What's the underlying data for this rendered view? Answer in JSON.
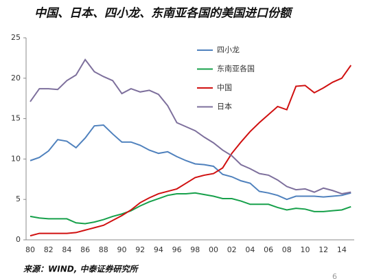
{
  "chart_data": {
    "type": "line",
    "title": "中国、日本、四小龙、东南亚各国的美国进口份额",
    "source": "来源：WIND, 中泰证券研究所",
    "page_number": "6",
    "categories": [
      "80",
      null,
      "82",
      null,
      "84",
      null,
      "86",
      null,
      "88",
      null,
      "90",
      null,
      "92",
      null,
      "94",
      null,
      "96",
      null,
      "98",
      null,
      "00",
      null,
      "02",
      null,
      "04",
      null,
      "06",
      null,
      "08",
      null,
      "10",
      null,
      "12",
      null,
      "14",
      null
    ],
    "series": [
      {
        "name": "四小龙",
        "color": "#4f81bd",
        "values": [
          9.8,
          10.2,
          11,
          12.4,
          12.2,
          11.4,
          12.6,
          14.1,
          14.2,
          13.1,
          12.1,
          12.1,
          11.7,
          11.1,
          10.7,
          10.9,
          10.3,
          9.8,
          9.4,
          9.3,
          9.1,
          8.1,
          7.8,
          7.3,
          7.0,
          6.0,
          5.8,
          5.5,
          5.0,
          5.4,
          5.4,
          5.4,
          5.3,
          5.4,
          5.5,
          5.8
        ]
      },
      {
        "name": "东南亚各国",
        "color": "#16a04a",
        "values": [
          2.9,
          2.7,
          2.6,
          2.6,
          2.6,
          2.1,
          2.0,
          2.2,
          2.5,
          2.9,
          3.2,
          3.6,
          4.2,
          4.7,
          5.1,
          5.5,
          5.7,
          5.7,
          5.8,
          5.6,
          5.4,
          5.1,
          5.1,
          4.8,
          4.4,
          4.4,
          4.4,
          4.0,
          3.7,
          3.9,
          3.8,
          3.5,
          3.5,
          3.6,
          3.7,
          4.1
        ]
      },
      {
        "name": "中国",
        "color": "#d01010",
        "values": [
          0.5,
          0.8,
          0.8,
          0.8,
          0.8,
          0.9,
          1.2,
          1.5,
          1.8,
          2.4,
          3.0,
          3.7,
          4.6,
          5.2,
          5.7,
          6.0,
          6.3,
          7.0,
          7.7,
          8.0,
          8.2,
          8.9,
          10.7,
          12.1,
          13.4,
          14.5,
          15.5,
          16.5,
          16.1,
          19.0,
          19.1,
          18.2,
          18.8,
          19.5,
          20.0,
          21.6
        ]
      },
      {
        "name": "日本",
        "color": "#7d6f9c",
        "values": [
          17.1,
          18.7,
          18.7,
          18.6,
          19.7,
          20.4,
          22.3,
          20.8,
          20.2,
          19.7,
          18.1,
          18.7,
          18.3,
          18.5,
          18.0,
          16.6,
          14.5,
          14.0,
          13.5,
          12.7,
          12.0,
          11.1,
          10.4,
          9.3,
          8.8,
          8.2,
          8.0,
          7.4,
          6.6,
          6.2,
          6.3,
          5.9,
          6.4,
          6.1,
          5.7,
          5.9
        ]
      }
    ],
    "ylim": [
      0,
      25
    ],
    "yticks": [
      0,
      5,
      10,
      15,
      20,
      25
    ]
  }
}
